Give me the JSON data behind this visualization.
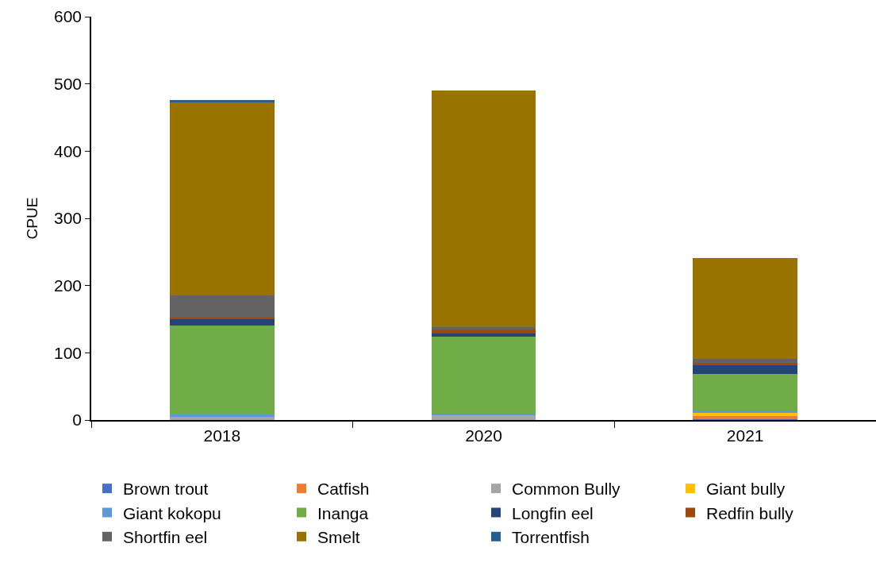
{
  "chart_data": {
    "type": "bar",
    "stacked": true,
    "ylabel": "CPUE",
    "categories": [
      "2018",
      "2020",
      "2021"
    ],
    "ylim": [
      0,
      600
    ],
    "yticks": [
      0,
      100,
      200,
      300,
      400,
      500,
      600
    ],
    "grid": false,
    "legend": "bottom",
    "series": [
      {
        "name": "Brown trout",
        "color": "#4472c4",
        "values": [
          0,
          0,
          1
        ]
      },
      {
        "name": "Catfish",
        "color": "#ed7d31",
        "values": [
          0,
          0,
          5
        ]
      },
      {
        "name": "Common Bully",
        "color": "#a5a5a5",
        "values": [
          5,
          8,
          0
        ]
      },
      {
        "name": "Giant bully",
        "color": "#ffc000",
        "values": [
          0,
          0,
          5
        ]
      },
      {
        "name": "Giant kokopu",
        "color": "#5b9bd5",
        "values": [
          3,
          1,
          3
        ]
      },
      {
        "name": "Inanga",
        "color": "#70ad47",
        "values": [
          132,
          115,
          54
        ]
      },
      {
        "name": "Longfin eel",
        "color": "#264478",
        "values": [
          10,
          5,
          13
        ]
      },
      {
        "name": "Redfin bully",
        "color": "#9e480e",
        "values": [
          2,
          6,
          4
        ]
      },
      {
        "name": "Shortfin eel",
        "color": "#636363",
        "values": [
          33,
          3,
          6
        ]
      },
      {
        "name": "Smelt",
        "color": "#997300",
        "values": [
          288,
          352,
          150
        ]
      },
      {
        "name": "Torrentfish",
        "color": "#255e91",
        "values": [
          3,
          0,
          0
        ]
      }
    ]
  }
}
